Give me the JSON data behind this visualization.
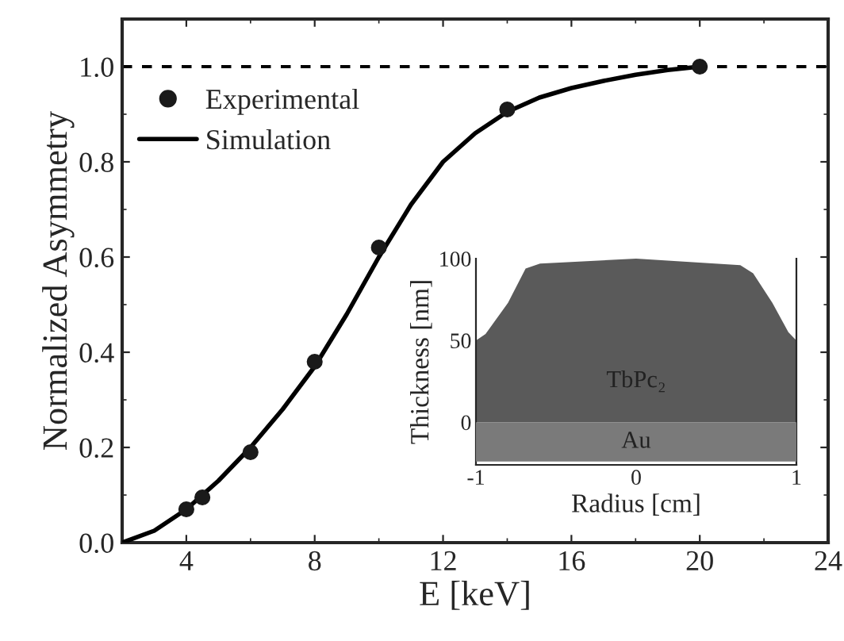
{
  "chart_data": [
    {
      "type": "line",
      "xlabel": "E [keV]",
      "ylabel": "Normalized Asymmetry",
      "xlim": [
        2,
        24
      ],
      "ylim": [
        0,
        1.1
      ],
      "xticks": [
        4,
        8,
        12,
        16,
        20,
        24
      ],
      "yticks": [
        {
          "value": 0,
          "label": "0.0"
        },
        0.2,
        0.4,
        0.6,
        0.8,
        {
          "value": 1,
          "label": "1.0"
        }
      ],
      "legend": "top left",
      "series": [
        {
          "name": "Experimental",
          "type": "scatter",
          "marker": "circle",
          "color": "#1a1a1a",
          "x": [
            4,
            4.5,
            6,
            8,
            10,
            14,
            20
          ],
          "values": [
            0.07,
            0.095,
            0.19,
            0.38,
            0.62,
            0.91,
            1.0
          ]
        },
        {
          "name": "Simulation",
          "type": "line",
          "line_style": "solid",
          "color": "#000000",
          "x": [
            2,
            3,
            4,
            5,
            6,
            7,
            8,
            9,
            10,
            11,
            12,
            13,
            14,
            15,
            16,
            17,
            18,
            19,
            20
          ],
          "values": [
            0,
            0.025,
            0.07,
            0.13,
            0.2,
            0.28,
            0.37,
            0.48,
            0.6,
            0.71,
            0.8,
            0.86,
            0.905,
            0.935,
            0.955,
            0.97,
            0.983,
            0.993,
            1.0
          ]
        }
      ],
      "ref_lines": [
        {
          "axis": "y",
          "value": 1.0,
          "line_style": "dashed",
          "color": "#000000"
        }
      ]
    },
    {
      "type": "area",
      "xlabel": "Radius [cm]",
      "ylabel": "Thickness [nm]",
      "xlim": [
        -1,
        1
      ],
      "ylim": [
        -26,
        100
      ],
      "xticks": [
        -1,
        0,
        1
      ],
      "yticks": [
        0,
        50,
        100
      ],
      "series": [
        {
          "name": "TbPc₂",
          "color": "#5a5a5a",
          "x": [
            -1,
            -0.94,
            -0.8,
            -0.69,
            -0.6,
            0,
            0.65,
            0.73,
            0.85,
            0.95,
            1
          ],
          "values": [
            50,
            54,
            73,
            94,
            97,
            100,
            96,
            91,
            73,
            55,
            50
          ]
        },
        {
          "name": "Au",
          "color": "#7a7a7a",
          "x": [
            -1,
            1
          ],
          "values": [
            -24,
            -24
          ]
        }
      ]
    }
  ]
}
